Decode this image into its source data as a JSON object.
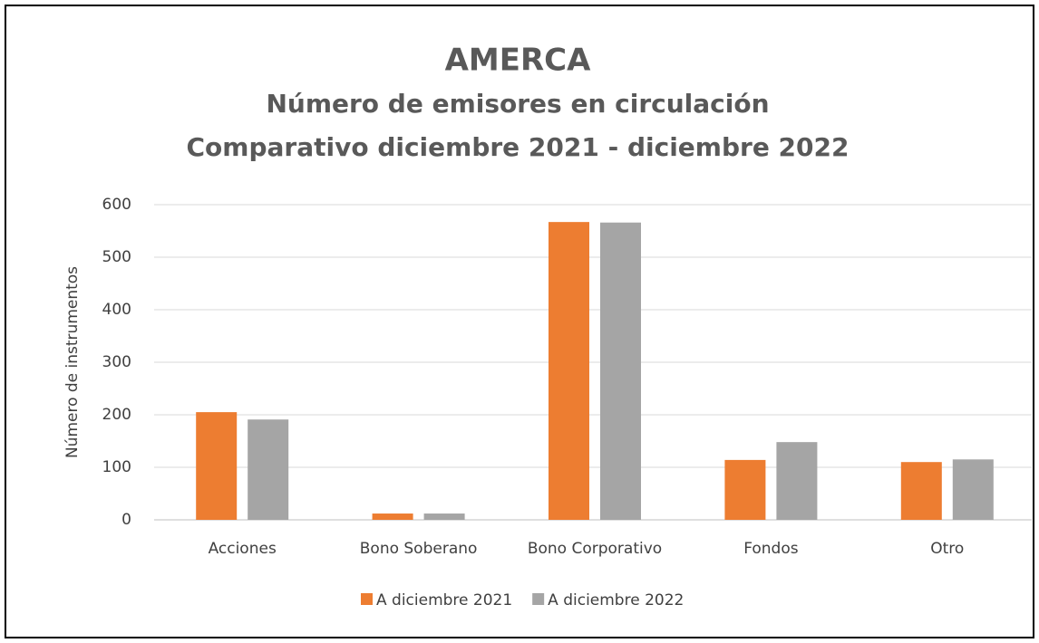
{
  "chart_data": {
    "type": "bar",
    "title": "AMERCA",
    "subtitle": [
      "Número de emisores en circulación",
      "Comparativo diciembre 2021 - diciembre 2022"
    ],
    "y_label": "Número de instrumentos",
    "categories": [
      "Acciones",
      "Bono Soberano",
      "Bono Corporativo",
      "Fondos",
      "Otro"
    ],
    "series": [
      {
        "name": "A diciembre 2021",
        "color": "#ed7d31",
        "values": [
          205,
          12,
          567,
          114,
          110
        ]
      },
      {
        "name": "A diciembre 2022",
        "color": "#a5a5a5",
        "values": [
          191,
          12,
          566,
          148,
          115
        ]
      }
    ],
    "ylim": [
      0,
      600
    ],
    "yticks": [
      0,
      100,
      200,
      300,
      400,
      500,
      600
    ],
    "grid": true,
    "legend": "bottom"
  }
}
